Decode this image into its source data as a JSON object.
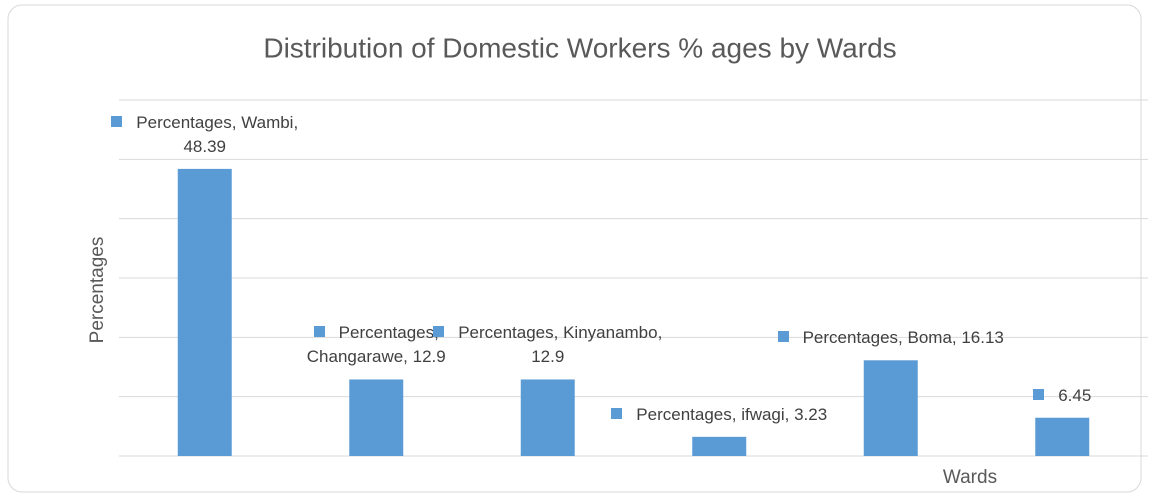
{
  "chart_data": {
    "type": "bar",
    "title": "Distribution of Domestic Workers % ages by Wards",
    "y_label": "Percentages",
    "x_label": "Wards",
    "categories": [
      "Wambi",
      "Changarawe",
      "Kinyanambo",
      "ifwagi",
      "Boma",
      null
    ],
    "series": [
      {
        "name": "Percentages",
        "color": "#5b9bd5",
        "values": [
          48.39,
          12.9,
          12.9,
          3.23,
          16.13,
          6.45
        ],
        "value_labels": [
          "Percentages, Wambi, 48.39",
          "Percentages, Changarawe, 12.9",
          "Percentages, Kinyanambo, 12.9",
          "Percentages, ifwagi, 3.23",
          "Percentages, Boma, 16.13",
          "6.45"
        ]
      }
    ],
    "ylim": [
      0,
      60
    ],
    "yticks": [
      0,
      10,
      20,
      30,
      40,
      50,
      60
    ],
    "grid": true
  }
}
